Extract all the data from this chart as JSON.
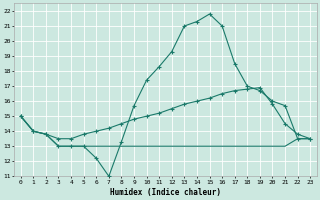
{
  "xlabel": "Humidex (Indice chaleur)",
  "xlim": [
    -0.5,
    23.5
  ],
  "ylim": [
    11,
    22.5
  ],
  "yticks": [
    11,
    12,
    13,
    14,
    15,
    16,
    17,
    18,
    19,
    20,
    21,
    22
  ],
  "xticks": [
    0,
    1,
    2,
    3,
    4,
    5,
    6,
    7,
    8,
    9,
    10,
    11,
    12,
    13,
    14,
    15,
    16,
    17,
    18,
    19,
    20,
    21,
    22,
    23
  ],
  "bg_color": "#cce8e0",
  "grid_color": "#ffffff",
  "line_color": "#1a7a6a",
  "line1_x": [
    0,
    1,
    2,
    3,
    4,
    5,
    6,
    7,
    8,
    9,
    10,
    11,
    12,
    13,
    14,
    15,
    16,
    17,
    18,
    19,
    20,
    21,
    22,
    23
  ],
  "line1_y": [
    15,
    14,
    13.8,
    13,
    13,
    13,
    12.2,
    11,
    13.3,
    15.7,
    17.4,
    18.3,
    19.3,
    21,
    21.3,
    21.8,
    21,
    18.5,
    17,
    16.7,
    16,
    15.7,
    13.5,
    13.5
  ],
  "line2_x": [
    0,
    1,
    2,
    3,
    4,
    5,
    6,
    7,
    8,
    9,
    10,
    11,
    12,
    13,
    14,
    15,
    16,
    17,
    18,
    19,
    20,
    21,
    22,
    23
  ],
  "line2_y": [
    15,
    14,
    13.8,
    13.5,
    13.5,
    13.8,
    14,
    14.2,
    14.5,
    14.8,
    15,
    15.2,
    15.5,
    15.8,
    16,
    16.2,
    16.5,
    16.7,
    16.8,
    16.9,
    15.8,
    14.5,
    13.8,
    13.5
  ],
  "line3_x": [
    0,
    1,
    2,
    3,
    4,
    5,
    6,
    7,
    8,
    9,
    10,
    11,
    12,
    13,
    14,
    15,
    16,
    17,
    18,
    19,
    20,
    21,
    22,
    23
  ],
  "line3_y": [
    15,
    14,
    13.8,
    13,
    13,
    13,
    13,
    13,
    13,
    13,
    13,
    13,
    13,
    13,
    13,
    13,
    13,
    13,
    13,
    13,
    13,
    13,
    13.5,
    13.5
  ]
}
